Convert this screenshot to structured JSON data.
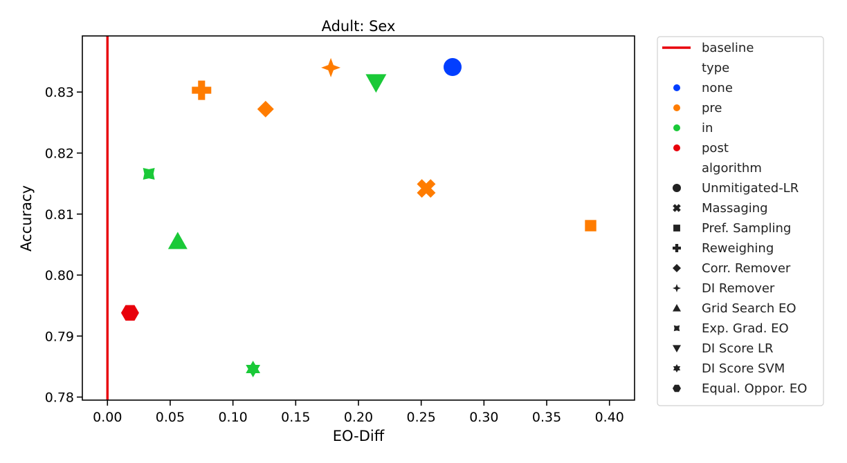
{
  "chart_data": {
    "type": "scatter",
    "title": "Adult: Sex",
    "xlabel": "EO-Diff",
    "ylabel": "Accuracy",
    "xlim": [
      -0.02,
      0.42
    ],
    "ylim": [
      0.7795,
      0.8392
    ],
    "x_ticks": [
      "0.00",
      "0.05",
      "0.10",
      "0.15",
      "0.20",
      "0.25",
      "0.30",
      "0.35",
      "0.40"
    ],
    "y_ticks": [
      "0.78",
      "0.79",
      "0.80",
      "0.81",
      "0.82",
      "0.83"
    ],
    "grid": false,
    "baseline": {
      "label": "baseline",
      "x": 0.0,
      "color": "#e8000b"
    },
    "type_colors": {
      "none": "#023eff",
      "pre": "#ff7c00",
      "in": "#1ac938",
      "post": "#e8000b"
    },
    "points": [
      {
        "algorithm": "Unmitigated-LR",
        "type": "none",
        "marker": "circle",
        "x": 0.275,
        "y": 0.8341
      },
      {
        "algorithm": "Massaging",
        "type": "pre",
        "marker": "x",
        "x": 0.254,
        "y": 0.8142
      },
      {
        "algorithm": "Pref. Sampling",
        "type": "pre",
        "marker": "square",
        "x": 0.385,
        "y": 0.8081
      },
      {
        "algorithm": "Reweighing",
        "type": "pre",
        "marker": "plus",
        "x": 0.075,
        "y": 0.8303
      },
      {
        "algorithm": "Corr. Remover",
        "type": "pre",
        "marker": "diamond",
        "x": 0.126,
        "y": 0.8272
      },
      {
        "algorithm": "DI Remover",
        "type": "pre",
        "marker": "star4",
        "x": 0.178,
        "y": 0.834
      },
      {
        "algorithm": "Grid Search EO",
        "type": "in",
        "marker": "triangle-up",
        "x": 0.056,
        "y": 0.8055
      },
      {
        "algorithm": "Exp. Grad. EO",
        "type": "in",
        "marker": "bowtie",
        "x": 0.033,
        "y": 0.8166
      },
      {
        "algorithm": "DI Score LR",
        "type": "in",
        "marker": "triangle-down",
        "x": 0.214,
        "y": 0.8316
      },
      {
        "algorithm": "DI Score SVM",
        "type": "in",
        "marker": "star6",
        "x": 0.116,
        "y": 0.7846
      },
      {
        "algorithm": "Equal. Oppor. EO",
        "type": "post",
        "marker": "hexagon",
        "x": 0.018,
        "y": 0.7938
      }
    ],
    "legend": {
      "placement": "outside-right",
      "baseline_label": "baseline",
      "type_header": "type",
      "types": [
        {
          "label": "none",
          "color": "#023eff"
        },
        {
          "label": "pre",
          "color": "#ff7c00"
        },
        {
          "label": "in",
          "color": "#1ac938"
        },
        {
          "label": "post",
          "color": "#e8000b"
        }
      ],
      "algorithm_header": "algorithm",
      "algorithms": [
        {
          "label": "Unmitigated-LR",
          "marker": "circle"
        },
        {
          "label": "Massaging",
          "marker": "x"
        },
        {
          "label": "Pref. Sampling",
          "marker": "square"
        },
        {
          "label": "Reweighing",
          "marker": "plus"
        },
        {
          "label": "Corr. Remover",
          "marker": "diamond"
        },
        {
          "label": "DI Remover",
          "marker": "star4"
        },
        {
          "label": "Grid Search EO",
          "marker": "triangle-up"
        },
        {
          "label": "Exp. Grad. EO",
          "marker": "bowtie"
        },
        {
          "label": "DI Score LR",
          "marker": "triangle-down"
        },
        {
          "label": "DI Score SVM",
          "marker": "star6"
        },
        {
          "label": "Equal. Oppor. EO",
          "marker": "hexagon"
        }
      ]
    }
  }
}
